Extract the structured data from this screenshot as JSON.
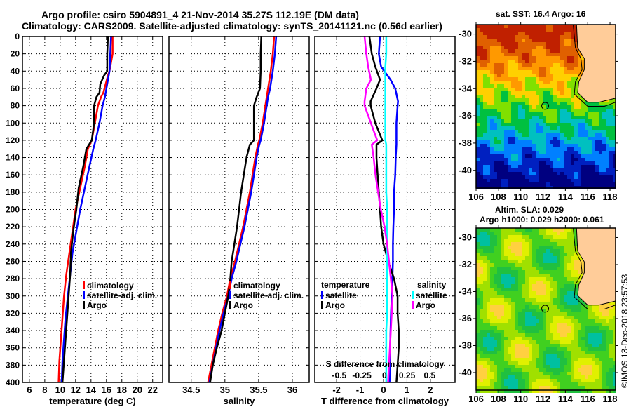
{
  "header": {
    "title_line1": "Argo profile: csiro 5904891_4 21-Nov-2014 35.27S 112.19E (DM data)",
    "title_line2": "Climatology: CARS2009. Satellite-adjusted climatology: synTS_20141121.nc (0.56d earlier)"
  },
  "colors": {
    "climatology": "#ff0000",
    "satellite_adj": "#0000ff",
    "argo": "#000000",
    "sal_satellite": "#00ffff",
    "sal_argo": "#ff00ff",
    "land": "#ffcc99"
  },
  "chart_data": [
    {
      "type": "line",
      "name": "temperature-profile",
      "xlabel": "temperature (deg C)",
      "ylabel": "",
      "xlim": [
        5.1,
        23.3
      ],
      "ylim": [
        0,
        400
      ],
      "y_inverted": true,
      "xticks": [
        6,
        8,
        10,
        12,
        14,
        16,
        18,
        20,
        22
      ],
      "yticks": [
        0,
        20,
        40,
        60,
        80,
        100,
        120,
        140,
        160,
        180,
        200,
        220,
        240,
        260,
        280,
        300,
        320,
        340,
        360,
        380,
        400
      ],
      "grid": true,
      "legend": {
        "placement": "lower-right",
        "entries": [
          "climatology",
          "satellite-adj. clim.",
          "Argo"
        ]
      },
      "depth": [
        0,
        20,
        40,
        45,
        55,
        65,
        70,
        80,
        100,
        120,
        130,
        150,
        175,
        200,
        225,
        250,
        275,
        300,
        325,
        350,
        375,
        400
      ],
      "series": [
        {
          "name": "climatology",
          "color_key": "climatology",
          "values": [
            16.8,
            16.8,
            16.4,
            16.2,
            15.9,
            15.6,
            15.3,
            14.9,
            14.5,
            14.1,
            13.6,
            13.2,
            12.6,
            12.0,
            11.6,
            11.2,
            10.8,
            10.5,
            10.3,
            10.1,
            9.9,
            9.8
          ]
        },
        {
          "name": "satellite-adj. clim.",
          "color_key": "satellite_adj",
          "values": [
            16.6,
            16.5,
            16.4,
            16.3,
            16.1,
            15.9,
            15.8,
            15.5,
            15.1,
            14.6,
            14.3,
            13.8,
            13.2,
            12.6,
            12.1,
            11.6,
            11.3,
            11.0,
            10.7,
            10.5,
            10.3,
            10.2
          ]
        },
        {
          "name": "Argo",
          "color_key": "argo",
          "values": [
            16.2,
            16.1,
            16.1,
            15.7,
            15.2,
            15.1,
            14.7,
            14.4,
            14.4,
            14.1,
            13.4,
            13.0,
            12.4,
            12.1,
            11.7,
            11.4,
            11.3,
            11.1,
            10.9,
            10.7,
            10.5,
            10.3
          ]
        }
      ]
    },
    {
      "type": "line",
      "name": "salinity-profile",
      "xlabel": "salinity",
      "ylabel": "",
      "xlim": [
        34.17,
        36.25
      ],
      "ylim": [
        0,
        400
      ],
      "y_inverted": true,
      "xticks": [
        34.5,
        35,
        35.5,
        36
      ],
      "xtick_labels": [
        "34.5",
        "35",
        "35.5",
        "36"
      ],
      "grid": true,
      "legend": {
        "placement": "lower-right",
        "entries": [
          "climatology",
          "satellite-adj. clim.",
          "Argo"
        ]
      },
      "depth": [
        0,
        20,
        40,
        60,
        70,
        80,
        100,
        120,
        125,
        140,
        160,
        180,
        200,
        220,
        240,
        260,
        280,
        300,
        320,
        340,
        360,
        380,
        400
      ],
      "series": [
        {
          "name": "climatology",
          "color_key": "climatology",
          "values": [
            35.73,
            35.71,
            35.68,
            35.64,
            35.62,
            35.6,
            35.56,
            35.51,
            35.49,
            35.45,
            35.41,
            35.37,
            35.32,
            35.27,
            35.21,
            35.15,
            35.08,
            35.03,
            34.96,
            34.9,
            34.85,
            34.8,
            34.75
          ]
        },
        {
          "name": "satellite-adj. clim.",
          "color_key": "satellite_adj",
          "values": [
            35.76,
            35.74,
            35.71,
            35.67,
            35.64,
            35.62,
            35.58,
            35.53,
            35.51,
            35.47,
            35.43,
            35.39,
            35.34,
            35.29,
            35.23,
            35.17,
            35.1,
            35.05,
            34.98,
            34.92,
            34.87,
            34.82,
            34.77
          ]
        },
        {
          "name": "Argo",
          "color_key": "argo",
          "values": [
            35.54,
            35.53,
            35.53,
            35.52,
            35.47,
            35.43,
            35.43,
            35.43,
            35.37,
            35.32,
            35.28,
            35.24,
            35.21,
            35.18,
            35.14,
            35.1,
            35.08,
            35.05,
            35.0,
            34.95,
            34.88,
            34.82,
            34.78
          ]
        }
      ]
    },
    {
      "type": "line",
      "name": "difference-profile",
      "xlabel": "T difference from climatology",
      "x2label": "S difference from climatology",
      "xlim": [
        -2.93,
        3.05
      ],
      "x2lim": [
        -0.77,
        0.78
      ],
      "ylim": [
        0,
        400
      ],
      "y_inverted": true,
      "xticks": [
        -2,
        -1,
        0,
        1,
        2
      ],
      "x2ticks": [
        -0.5,
        -0.25,
        0,
        0.25,
        0.5
      ],
      "x2tick_labels": [
        "-0.5",
        "-0.25",
        "0",
        "0.25",
        "0.5"
      ],
      "grid": true,
      "legend": {
        "placement": "lower",
        "temperature_title": "temperature",
        "salinity_title": "salinity",
        "entries_temperature": [
          "satellite",
          "Argo"
        ],
        "entries_salinity": [
          "satellite",
          "Argo"
        ]
      },
      "depth": [
        0,
        20,
        35,
        50,
        60,
        75,
        80,
        100,
        120,
        125,
        140,
        160,
        180,
        200,
        220,
        240,
        260,
        280,
        300,
        320,
        340,
        360,
        380,
        400
      ],
      "series": [
        {
          "name": "temperature satellite",
          "axis": "T",
          "color_key": "satellite_adj",
          "values": [
            -0.15,
            -0.2,
            -0.1,
            0.3,
            0.5,
            0.62,
            0.6,
            0.55,
            0.55,
            0.55,
            0.52,
            0.5,
            0.45,
            0.45,
            0.42,
            0.4,
            0.4,
            0.38,
            0.35,
            0.32,
            0.3,
            0.28,
            0.27,
            0.26
          ]
        },
        {
          "name": "temperature Argo",
          "axis": "T",
          "color_key": "argo",
          "values": [
            -0.6,
            -0.5,
            -0.35,
            -0.15,
            -0.3,
            -0.55,
            -0.55,
            -0.35,
            -0.05,
            -0.3,
            -0.3,
            -0.25,
            -0.2,
            -0.15,
            -0.1,
            0.0,
            0.2,
            0.45,
            0.6,
            0.6,
            0.65,
            0.65,
            0.6,
            0.55
          ]
        },
        {
          "name": "salinity satellite",
          "axis": "S",
          "color_key": "sal_satellite",
          "values": [
            0.02,
            0.02,
            0.01,
            0.01,
            0.01,
            0.01,
            0.01,
            0.01,
            0.01,
            0.02,
            0.02,
            0.02,
            0.02,
            0.03,
            0.03,
            0.03,
            0.03,
            0.03,
            0.03,
            0.03,
            0.02,
            0.02,
            0.02,
            0.02
          ]
        },
        {
          "name": "salinity Argo",
          "axis": "S",
          "color_key": "sal_argo",
          "values": [
            -0.22,
            -0.2,
            -0.18,
            -0.15,
            -0.2,
            -0.22,
            -0.22,
            -0.15,
            -0.08,
            -0.14,
            -0.12,
            -0.1,
            -0.07,
            -0.04,
            0.0,
            0.03,
            0.05,
            0.07,
            0.09,
            0.08,
            0.07,
            0.06,
            0.05,
            0.04
          ]
        }
      ]
    },
    {
      "type": "heatmap",
      "name": "sst-map",
      "title": "sat. SST: 16.4 Argo: 16",
      "xlim": [
        106,
        118.5
      ],
      "ylim": [
        -41.3,
        -29.3
      ],
      "xticks": [
        106,
        108,
        110,
        112,
        114,
        116,
        118
      ],
      "yticks": [
        -30,
        -32,
        -34,
        -36,
        -38,
        -40
      ],
      "marker": {
        "lon": 112.19,
        "lat": -35.27
      }
    },
    {
      "type": "heatmap",
      "name": "sla-map",
      "title": "Altim. SLA: 0.029",
      "subtitle": "Argo h1000: 0.029 h2000: 0.061",
      "xlim": [
        106,
        118.5
      ],
      "ylim": [
        -41.3,
        -29.3
      ],
      "xticks": [
        106,
        108,
        110,
        112,
        114,
        116,
        118
      ],
      "yticks": [
        -30,
        -32,
        -34,
        -36,
        -38,
        -40
      ],
      "marker": {
        "lon": 112.19,
        "lat": -35.27
      }
    }
  ],
  "footer": {
    "copyright": "©IMOS 13-Dec-2018 23:57:53"
  }
}
